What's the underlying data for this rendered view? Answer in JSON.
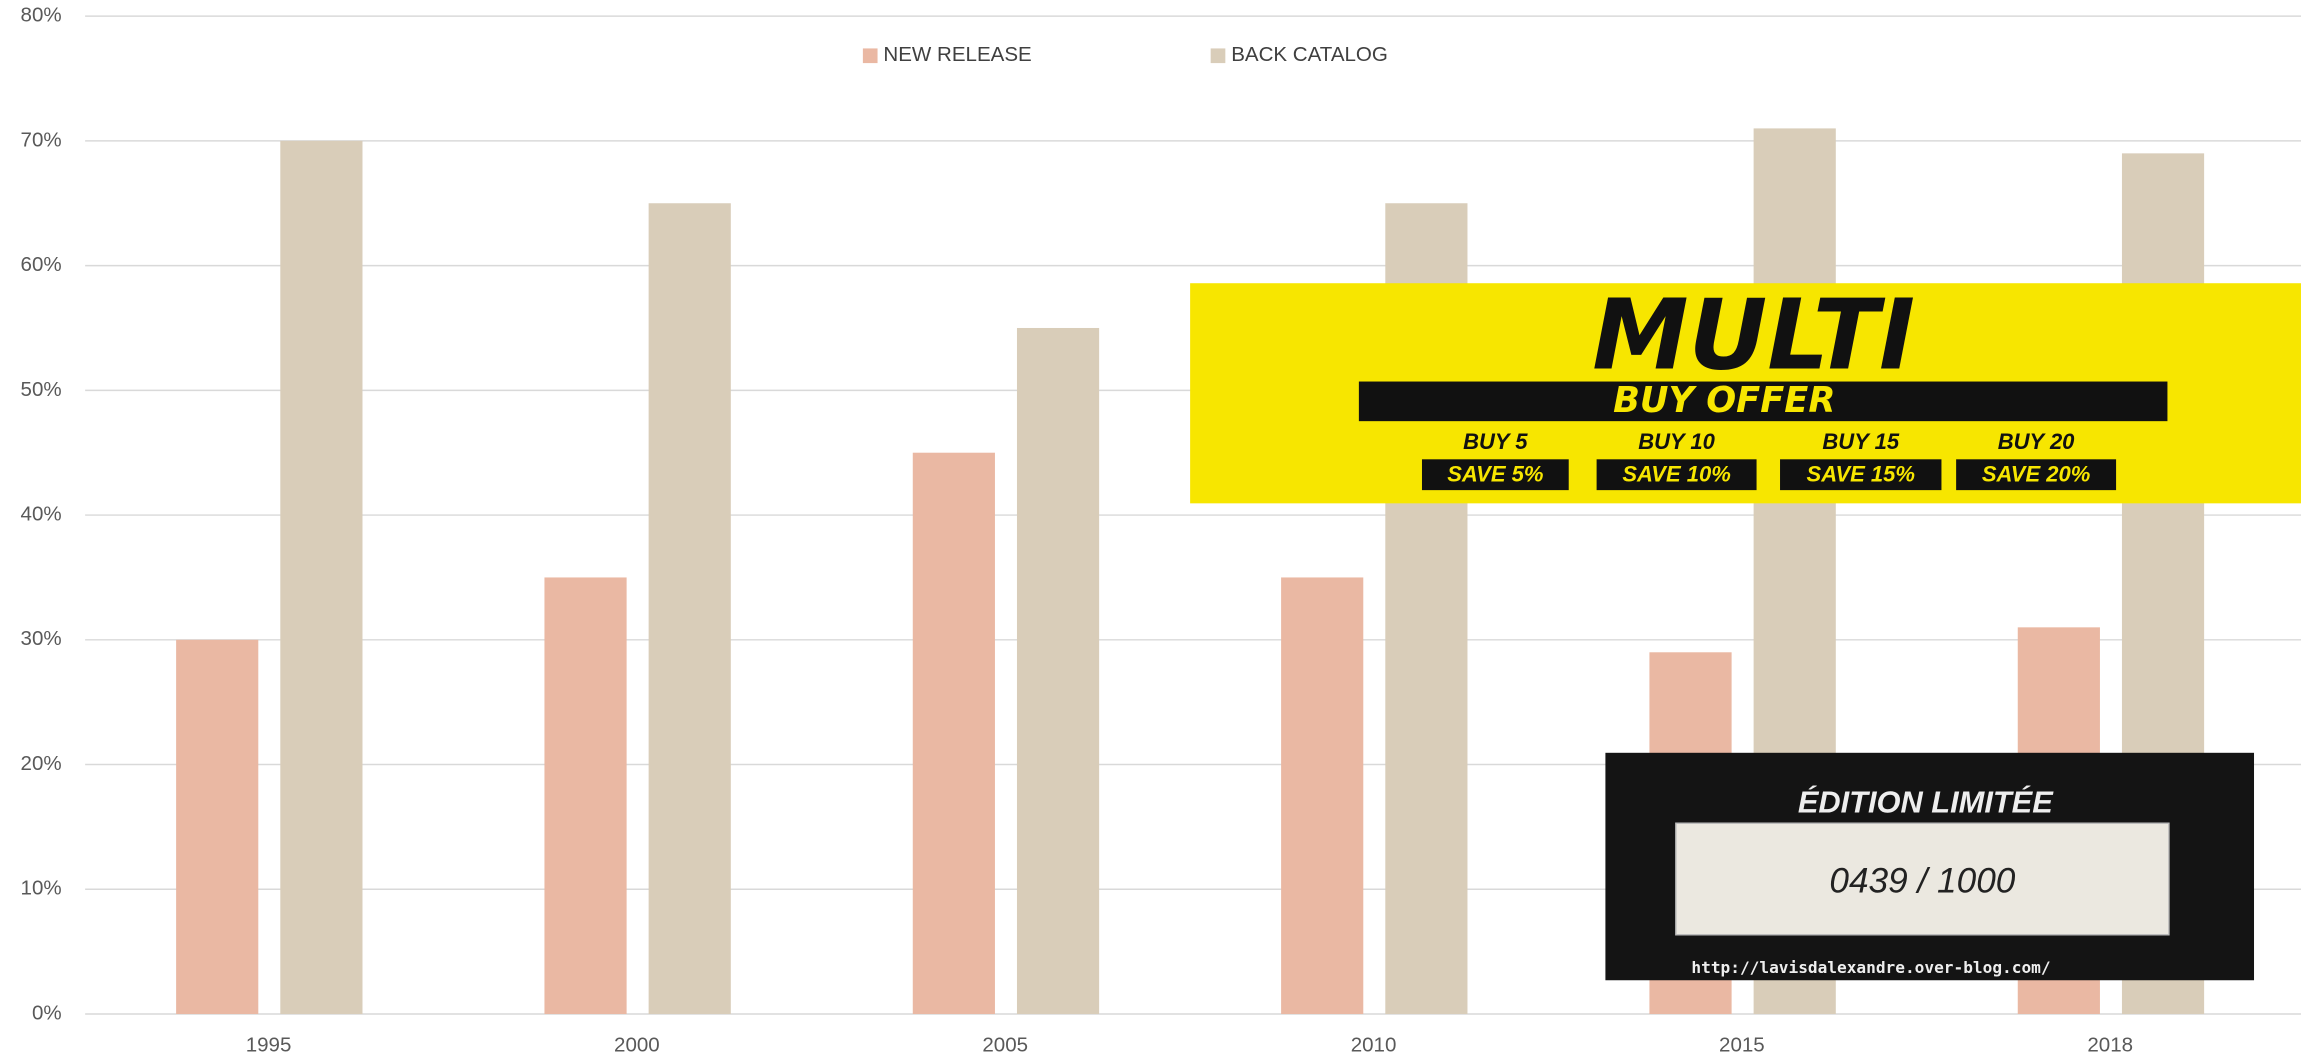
{
  "chart_data": {
    "type": "bar",
    "categories": [
      "1995",
      "2000",
      "2005",
      "2010",
      "2015",
      "2018"
    ],
    "series": [
      {
        "name": "NEW RELEASE",
        "color": "#eab8a3",
        "values": [
          30,
          35,
          45,
          35,
          29,
          31
        ]
      },
      {
        "name": "BACK CATALOG",
        "color": "#d9cdb9",
        "values": [
          70,
          65,
          55,
          65,
          71,
          69
        ]
      }
    ],
    "ylim": [
      0,
      80
    ],
    "yticks": [
      {
        "value": 0,
        "label": "0%"
      },
      {
        "value": 10,
        "label": "10%"
      },
      {
        "value": 20,
        "label": "20%"
      },
      {
        "value": 30,
        "label": "30%"
      },
      {
        "value": 40,
        "label": "40%"
      },
      {
        "value": 50,
        "label": "50%"
      },
      {
        "value": 60,
        "label": "60%"
      },
      {
        "value": 70,
        "label": "70%"
      },
      {
        "value": 80,
        "label": "80%"
      }
    ],
    "grid": true,
    "legend": "top"
  },
  "promo": {
    "title": "MULTI",
    "subtitle": "BUY OFFER",
    "offers": [
      {
        "buy": "BUY 5",
        "save": "SAVE 5%"
      },
      {
        "buy": "BUY 10",
        "save": "SAVE 10%"
      },
      {
        "buy": "BUY 15",
        "save": "SAVE 15%"
      },
      {
        "buy": "BUY 20",
        "save": "SAVE 20%"
      }
    ]
  },
  "badge": {
    "title": "ÉDITION LIMITÉE",
    "number": "0439 / 1000",
    "url": "http://lavisdalexandre.over-blog.com/"
  }
}
